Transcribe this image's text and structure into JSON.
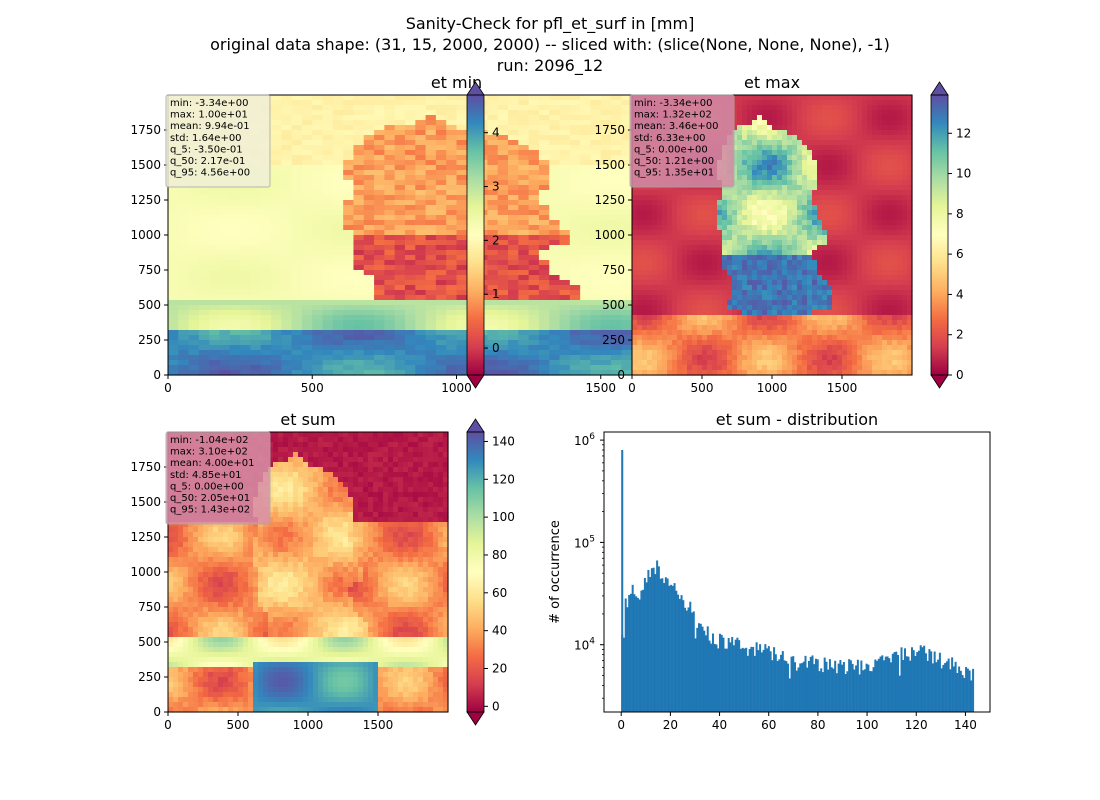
{
  "figure": {
    "title_lines": [
      "Sanity-Check for pfl_et_surf in [mm]",
      "original data shape: (31, 15, 2000, 2000) -- sliced with: (slice(None, None, None), -1)",
      "run: 2096_12"
    ]
  },
  "chart_data": [
    {
      "type": "heatmap",
      "title": "et min",
      "colormap": "Spectral",
      "xlim": [
        0,
        2000
      ],
      "ylim": [
        0,
        2000
      ],
      "xticks": [
        0,
        500,
        1000,
        1500
      ],
      "yticks": [
        0,
        250,
        500,
        750,
        1000,
        1250,
        1500,
        1750
      ],
      "colorbar": {
        "min": -0.5,
        "max": 4.7,
        "ticks": [
          0,
          1,
          2,
          3,
          4
        ],
        "extend": "both"
      },
      "stats": [
        "min: -3.34e+00",
        "max: 1.00e+01",
        "mean: 9.94e-01",
        "std: 1.64e+00",
        "q_5: -3.50e-01",
        "q_50: 2.17e-01",
        "q_95: 4.56e+00"
      ],
      "stats_box_color": "#f0f0d8"
    },
    {
      "type": "heatmap",
      "title": "et max",
      "colormap": "Spectral",
      "xlim": [
        0,
        2000
      ],
      "ylim": [
        0,
        2000
      ],
      "xticks": [
        0,
        500,
        1000,
        1500
      ],
      "yticks": [
        0,
        250,
        500,
        750,
        1000,
        1250,
        1500,
        1750
      ],
      "colorbar": {
        "min": 0,
        "max": 13.9,
        "ticks": [
          0,
          2,
          4,
          6,
          8,
          10,
          12
        ],
        "extend": "both"
      },
      "stats": [
        "min: -3.34e+00",
        "max: 1.32e+02",
        "mean: 3.46e+00",
        "std: 6.33e+00",
        "q_5: 0.00e+00",
        "q_50: 1.21e+00",
        "q_95: 1.35e+01"
      ],
      "stats_box_color": "#d08aa6"
    },
    {
      "type": "heatmap",
      "title": "et sum",
      "colormap": "Spectral",
      "xlim": [
        0,
        2000
      ],
      "ylim": [
        0,
        2000
      ],
      "xticks": [
        0,
        500,
        1000,
        1500
      ],
      "yticks": [
        0,
        250,
        500,
        750,
        1000,
        1250,
        1500,
        1750
      ],
      "colorbar": {
        "min": -3,
        "max": 145,
        "ticks": [
          0,
          20,
          40,
          60,
          80,
          100,
          120,
          140
        ],
        "extend": "both"
      },
      "stats": [
        "min: -1.04e+02",
        "max: 3.10e+02",
        "mean: 4.00e+01",
        "std: 4.85e+01",
        "q_5: 0.00e+00",
        "q_50: 2.05e+01",
        "q_95: 1.43e+02"
      ],
      "stats_box_color": "#d890a8"
    },
    {
      "type": "bar",
      "title": "et sum - distribution",
      "ylabel": "# of occurrence",
      "yscale": "log",
      "color": "#1f77b4",
      "xlim": [
        -7,
        150
      ],
      "ylim": [
        2200,
        1200000
      ],
      "xticks": [
        0,
        20,
        40,
        60,
        80,
        100,
        120,
        140
      ],
      "yticks": [
        10000,
        100000,
        1000000
      ],
      "ytick_labels": [
        [
          "10",
          "4"
        ],
        [
          "10",
          "5"
        ],
        [
          "10",
          "6"
        ]
      ],
      "bin_width": 0.71,
      "bins_start": 0,
      "spike": {
        "x": 0,
        "count": 800000
      },
      "profile": [
        [
          0.3,
          11500
        ],
        [
          1.0,
          18000
        ],
        [
          2.0,
          27000
        ],
        [
          4.0,
          30000
        ],
        [
          5.0,
          40000
        ],
        [
          6.0,
          33000
        ],
        [
          8.0,
          31000
        ],
        [
          10.0,
          42000
        ],
        [
          13.0,
          60000
        ],
        [
          15.0,
          57000
        ],
        [
          18.0,
          46000
        ],
        [
          20.0,
          40000
        ],
        [
          23.0,
          32000
        ],
        [
          26.0,
          27000
        ],
        [
          28.0,
          23000
        ],
        [
          30.0,
          19000
        ],
        [
          33.0,
          15000
        ],
        [
          36.0,
          12500
        ],
        [
          40.0,
          11000
        ],
        [
          45.0,
          10500
        ],
        [
          50.0,
          9800
        ],
        [
          55.0,
          9000
        ],
        [
          60.0,
          8500
        ],
        [
          65.0,
          7800
        ],
        [
          70.0,
          7300
        ],
        [
          75.0,
          6900
        ],
        [
          80.0,
          6500
        ],
        [
          85.0,
          6300
        ],
        [
          90.0,
          6200
        ],
        [
          95.0,
          6100
        ],
        [
          100.0,
          6300
        ],
        [
          105.0,
          6800
        ],
        [
          110.0,
          7300
        ],
        [
          115.0,
          8200
        ],
        [
          120.0,
          8800
        ],
        [
          125.0,
          8200
        ],
        [
          130.0,
          7200
        ],
        [
          135.0,
          6400
        ],
        [
          140.0,
          5500
        ],
        [
          143.0,
          5000
        ]
      ]
    }
  ]
}
